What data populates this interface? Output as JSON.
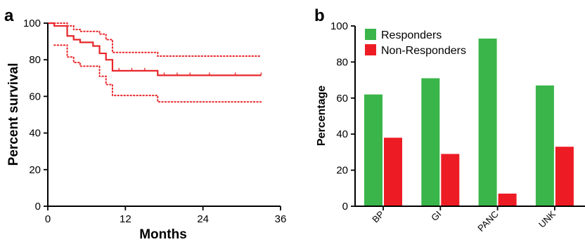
{
  "chart_data": [
    {
      "panel_label": "a",
      "type": "line",
      "subtype": "kaplan-meier",
      "xlabel": "Months",
      "ylabel": "Percent survival",
      "xlim": [
        0,
        36
      ],
      "ylim": [
        0,
        100
      ],
      "xticks": [
        0,
        12,
        24,
        36
      ],
      "yticks": [
        0,
        20,
        40,
        60,
        80,
        100
      ],
      "grid": false,
      "series": [
        {
          "role": "estimate",
          "style": "solid",
          "color": "#e8262a",
          "steps": [
            [
              0,
              100
            ],
            [
              1,
              98.5
            ],
            [
              3,
              93
            ],
            [
              4,
              91
            ],
            [
              5,
              89.5
            ],
            [
              7,
              87.5
            ],
            [
              8,
              83.5
            ],
            [
              9,
              80
            ],
            [
              10,
              74
            ],
            [
              17,
              71.5
            ],
            [
              33,
              71.5
            ]
          ]
        },
        {
          "role": "upper_ci",
          "style": "dotted",
          "color": "#e8262a",
          "steps": [
            [
              0,
              100
            ],
            [
              3,
              98.5
            ],
            [
              4,
              96.5
            ],
            [
              5,
              95.5
            ],
            [
              8,
              94
            ],
            [
              9,
              91
            ],
            [
              10,
              84
            ],
            [
              17,
              82
            ],
            [
              33,
              82
            ]
          ]
        },
        {
          "role": "lower_ci",
          "style": "dotted",
          "color": "#e8262a",
          "steps": [
            [
              1,
              88
            ],
            [
              3,
              81.5
            ],
            [
              4,
              78.5
            ],
            [
              5,
              76.5
            ],
            [
              8,
              71
            ],
            [
              9,
              66.5
            ],
            [
              10,
              60.5
            ],
            [
              17,
              57
            ],
            [
              33,
              57
            ]
          ]
        }
      ],
      "censor_marks_x": [
        11,
        13,
        15,
        18,
        20,
        22,
        25,
        29,
        33
      ]
    },
    {
      "panel_label": "b",
      "type": "bar",
      "ylabel": "Percentage",
      "ylim": [
        0,
        100
      ],
      "yticks": [
        0,
        20,
        40,
        60,
        80,
        100
      ],
      "grid": false,
      "legend_position": "top-left",
      "categories": [
        "BP",
        "GI",
        "PANC",
        "UNK"
      ],
      "series": [
        {
          "name": "Responders",
          "color": "#3ab54a",
          "values": [
            62,
            71,
            93,
            67
          ]
        },
        {
          "name": "Non-Responders",
          "color": "#ed1c24",
          "values": [
            38,
            29,
            7,
            33
          ]
        }
      ]
    }
  ]
}
